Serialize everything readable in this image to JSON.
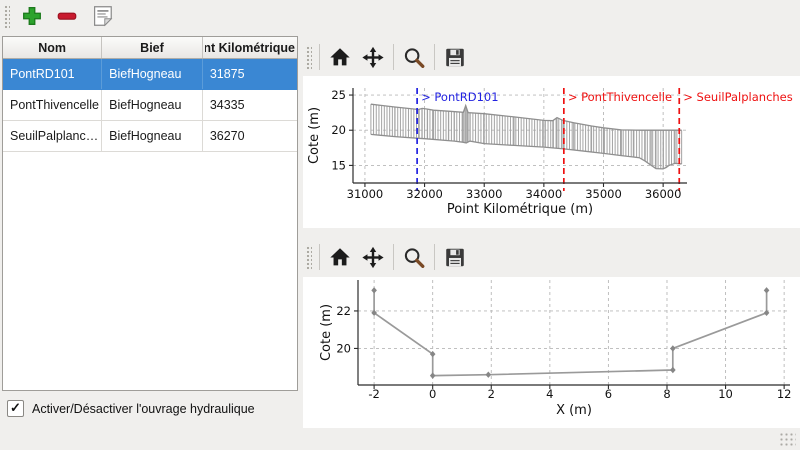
{
  "app": {
    "colors": {
      "window_bg": "#f0efed",
      "selection": "#3a87d3",
      "selection_text": "#ffffff",
      "plus_green": "#2da32d",
      "minus_red": "#c81a2e",
      "zoom_handle_brown": "#7a4a26"
    },
    "toolbar": {
      "buttons": [
        {
          "name": "add",
          "icon": "plus-icon"
        },
        {
          "name": "remove",
          "icon": "minus-icon"
        },
        {
          "name": "edit-notes",
          "icon": "notes-icon"
        }
      ]
    }
  },
  "table": {
    "headers": [
      "Nom",
      "Bief",
      "Point Kilométrique"
    ],
    "rows": [
      {
        "nom": "PontRD101",
        "bief": "BiefHogneau",
        "pk": "31875"
      },
      {
        "nom": "PontThivencelle",
        "bief": "BiefHogneau",
        "pk": "34335"
      },
      {
        "nom": "SeuilPalplanches",
        "bief": "BiefHogneau",
        "pk": "36270"
      }
    ],
    "selected_row": 0
  },
  "checkbox": {
    "label": "Activer/Désactiver l'ouvrage hydraulique",
    "checked": true,
    "mark": "✓"
  },
  "plot_toolbars": {
    "icons": [
      "home-icon",
      "pan-icon",
      "zoom-icon",
      "save-icon"
    ]
  },
  "chart_data": [
    {
      "type": "profile-verticals",
      "xlabel": "Point Kilométrique (m)",
      "ylabel": "Cote (m)",
      "xlim": [
        30800,
        36400
      ],
      "ylim": [
        12.5,
        26
      ],
      "xticks": [
        31000,
        32000,
        33000,
        34000,
        35000,
        36000
      ],
      "yticks": [
        15,
        20,
        25
      ],
      "grid": true,
      "line_color": "#a3a3a3",
      "envelope_color": "#8f8f8f",
      "bar_step": 45,
      "x_range": [
        31100,
        36310
      ],
      "bottom_profile": [
        [
          31100,
          19.4
        ],
        [
          31500,
          19.1
        ],
        [
          31900,
          18.85
        ],
        [
          32000,
          18.8
        ],
        [
          32500,
          18.45
        ],
        [
          32640,
          18.3
        ],
        [
          32700,
          18.2
        ],
        [
          32760,
          18.45
        ],
        [
          33000,
          18.1
        ],
        [
          33500,
          17.85
        ],
        [
          34000,
          17.6
        ],
        [
          34335,
          17.35
        ],
        [
          34700,
          17.0
        ],
        [
          35000,
          16.7
        ],
        [
          35300,
          16.4
        ],
        [
          35500,
          16.2
        ],
        [
          35600,
          16.1
        ],
        [
          35700,
          15.6
        ],
        [
          35800,
          15.0
        ],
        [
          35880,
          14.55
        ],
        [
          36000,
          14.5
        ],
        [
          36050,
          14.7
        ],
        [
          36100,
          15.0
        ],
        [
          36200,
          15.3
        ],
        [
          36310,
          15.2
        ]
      ],
      "top_profile": [
        [
          31100,
          23.7
        ],
        [
          31500,
          23.3
        ],
        [
          31900,
          22.95
        ],
        [
          31960,
          23.1
        ],
        [
          32050,
          23.0
        ],
        [
          32150,
          22.85
        ],
        [
          32400,
          22.7
        ],
        [
          32650,
          22.55
        ],
        [
          32690,
          23.5
        ],
        [
          32730,
          22.5
        ],
        [
          33000,
          22.35
        ],
        [
          33500,
          21.9
        ],
        [
          34000,
          21.4
        ],
        [
          34150,
          21.35
        ],
        [
          34220,
          21.8
        ],
        [
          34320,
          21.4
        ],
        [
          34500,
          21.05
        ],
        [
          34800,
          20.6
        ],
        [
          35000,
          20.35
        ],
        [
          35300,
          20.05
        ],
        [
          35600,
          20.0
        ],
        [
          36310,
          20.0
        ]
      ],
      "annotations": [
        {
          "label": "> PontRD101",
          "x": 31875,
          "color": "#2222e0"
        },
        {
          "label": "> PontThivencelle",
          "x": 34335,
          "color": "#ee1111"
        },
        {
          "label": "> SeuilPalplanches",
          "x": 36270,
          "color": "#ee1111"
        }
      ]
    },
    {
      "type": "line",
      "xlabel": "X (m)",
      "ylabel": "Cote (m)",
      "xlim": [
        -2.55,
        12.2
      ],
      "ylim": [
        18.05,
        23.65
      ],
      "xticks": [
        -2,
        0,
        2,
        4,
        6,
        8,
        10,
        12
      ],
      "yticks": [
        20,
        22
      ],
      "grid": true,
      "line_color": "#9a9a9a",
      "marker": true,
      "points": [
        [
          -2,
          23.1
        ],
        [
          -2,
          21.9
        ],
        [
          0,
          19.7
        ],
        [
          0,
          18.55
        ],
        [
          1.9,
          18.6
        ],
        [
          8.2,
          18.85
        ],
        [
          8.2,
          20.0
        ],
        [
          11.4,
          21.9
        ],
        [
          11.4,
          23.1
        ]
      ]
    }
  ]
}
